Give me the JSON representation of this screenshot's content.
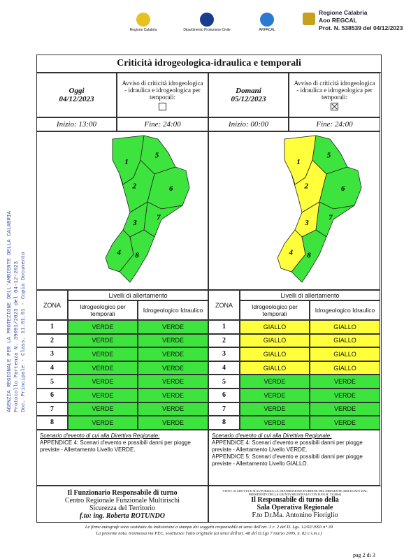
{
  "header": {
    "logos": [
      "Regione Calabria",
      "Dipartimento Protezione Civile",
      "ARPACAL"
    ],
    "stamp": [
      "Regione Calabria",
      "Aoo REGCAL",
      "Prot. N. 538539 del 04/12/2023"
    ]
  },
  "side_stamp": [
    "AGENZIA REGIONALE PER LA PROTEZIONE DELL'AMBIENTE DELLA CALABRIA",
    "Protocollo Partenza N. 39091/2023 del 04-12-2023",
    "Doc. Principale - Class. 11.01.01 - Copia Documento"
  ],
  "title": "Criticità idrogeologica-idraulica e temporali",
  "level_colors": {
    "VERDE": "#3ee43e",
    "GIALLO": "#ffff3c"
  },
  "days": [
    {
      "day": "Oggi",
      "date": "04/12/2023",
      "notice": "Avviso di criticità idrogeologica - idraulica e idrogeologica per temporali:",
      "notice_checked": false,
      "start": "Inizio: 13:00",
      "end": "Fine: 24:00",
      "table": {
        "zone_header": "ZONA",
        "levels_header": "Livelli di allertamento",
        "columns": [
          "Idrogeologico per temporali",
          "Idrogeologico Idraulico"
        ],
        "rows": [
          [
            1,
            "VERDE",
            "VERDE"
          ],
          [
            2,
            "VERDE",
            "VERDE"
          ],
          [
            3,
            "VERDE",
            "VERDE"
          ],
          [
            4,
            "VERDE",
            "VERDE"
          ],
          [
            5,
            "VERDE",
            "VERDE"
          ],
          [
            6,
            "VERDE",
            "VERDE"
          ],
          [
            7,
            "VERDE",
            "VERDE"
          ],
          [
            8,
            "VERDE",
            "VERDE"
          ]
        ]
      },
      "scenario": {
        "heading": "Scenario d'evento di cui alla Direttiva Regionale:",
        "lines": [
          "APPENDICE 4: Scenari d'evento e possibili danni per piogge previste - Allertamento Livello VERDE."
        ]
      }
    },
    {
      "day": "Domani",
      "date": "05/12/2023",
      "notice": "Avviso di criticità idrogeologica - idraulica e idrogeologica per temporali:",
      "notice_checked": true,
      "start": "Inizio: 00:00",
      "end": "Fine: 24:00",
      "table": {
        "zone_header": "ZONA",
        "levels_header": "Livelli di allertamento",
        "columns": [
          "Idrogeologico per temporali",
          "Idrogeologico Idraulico"
        ],
        "rows": [
          [
            1,
            "GIALLO",
            "GIALLO"
          ],
          [
            2,
            "GIALLO",
            "GIALLO"
          ],
          [
            3,
            "GIALLO",
            "GIALLO"
          ],
          [
            4,
            "GIALLO",
            "GIALLO"
          ],
          [
            5,
            "VERDE",
            "VERDE"
          ],
          [
            6,
            "VERDE",
            "VERDE"
          ],
          [
            7,
            "VERDE",
            "VERDE"
          ],
          [
            8,
            "VERDE",
            "VERDE"
          ]
        ]
      },
      "scenario": {
        "heading": "Scenario d'evento di cui alla Direttiva Regionale:",
        "lines": [
          "APPENDICE 4: Scenari d'evento e possibili danni per piogge previste - Allertamento Livello VERDE.",
          "APPENDICE 5: Scenari d'evento e possibili danni per piogge previste - Allertamento Livello GIALLO."
        ]
      }
    }
  ],
  "footer": {
    "left": [
      "Il Funzionario Responsabile di turno",
      "Centro Regionale Funzionale Multirischi",
      "Sicurezza del Territorio",
      "f.to: ing. Roberta ROTUNDO"
    ],
    "right_note": "VISTO, SI ADOTTA E SI AUTORIZZA LA TRASMISSIONE D'ORDINE DEL DIRIGENTE (DELEGATO DAL PRESIDENTE DELLA GIUNTA REGIONALE CON D.P.G.R. 13/2004)",
    "right": [
      "Il Responsabile di turno della",
      "Sala Operativa Regionale",
      "F.to Dr.Ma. Antonino Fioriglio"
    ]
  },
  "notes": [
    "Le firme autografe sono sostituite da indicazione a stampa dei soggetti responsabili ai sensi dell'art. 3 c. 2 del D. Lgs. 12/02/1993 n° 39",
    "La presente nota, trasmessa via PEC, sostituisce l'atto originale (ai sensi dell'art. 48 del D.Lgs 7 marzo 2005, n. 82 e s.m.i.)"
  ],
  "page": "pag 2 di 3"
}
